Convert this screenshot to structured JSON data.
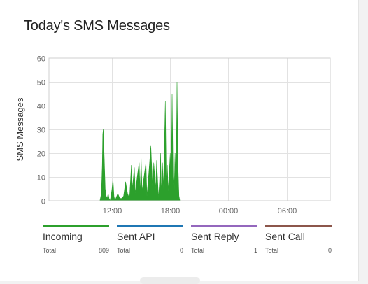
{
  "panel": {
    "title": "Today's SMS Messages"
  },
  "chart_data": {
    "type": "area",
    "title": "Today's SMS Messages",
    "ylabel": "SMS Messages",
    "xlabel": "",
    "ylim": [
      0,
      60
    ],
    "yticks": [
      "0",
      "10",
      "20",
      "30",
      "40",
      "50",
      "60"
    ],
    "xticks": [
      {
        "hour": 12,
        "label": "12:00"
      },
      {
        "hour": 18,
        "label": "18:00"
      },
      {
        "hour": 24,
        "label": "00:00"
      },
      {
        "hour": 30,
        "label": "06:00"
      }
    ],
    "xlim_hours": [
      5.5,
      34.5
    ],
    "grid": true,
    "series": [
      {
        "name": "Incoming",
        "color": "#2ca02c",
        "x_hours": [
          10.75,
          10.9,
          11.0,
          11.05,
          11.1,
          11.2,
          11.3,
          11.4,
          11.5,
          11.6,
          11.7,
          11.8,
          11.9,
          12.0,
          12.1,
          12.2,
          12.3,
          12.4,
          12.6,
          12.8,
          13.0,
          13.2,
          13.4,
          13.6,
          13.8,
          14.0,
          14.1,
          14.3,
          14.4,
          14.6,
          14.8,
          14.9,
          15.0,
          15.1,
          15.3,
          15.5,
          15.6,
          15.8,
          16.0,
          16.2,
          16.3,
          16.5,
          16.6,
          16.8,
          16.9,
          17.0,
          17.1,
          17.2,
          17.3,
          17.5,
          17.6,
          17.7,
          17.8,
          17.9,
          18.0,
          18.1,
          18.2,
          18.3,
          18.4,
          18.5,
          18.6,
          18.7,
          18.8,
          18.9,
          19.0
        ],
        "values": [
          0,
          3,
          15,
          28,
          30,
          18,
          5,
          2,
          1,
          3,
          1,
          0,
          2,
          5,
          9,
          2,
          0,
          1,
          3,
          1,
          1,
          2,
          8,
          3,
          1,
          15,
          5,
          14,
          3,
          10,
          16,
          3,
          18,
          4,
          10,
          16,
          2,
          12,
          23,
          4,
          16,
          5,
          17,
          1,
          8,
          20,
          3,
          16,
          5,
          42,
          8,
          15,
          4,
          12,
          20,
          8,
          45,
          10,
          2,
          20,
          6,
          50,
          15,
          2,
          0
        ],
        "total_label": "Total",
        "total": "809"
      },
      {
        "name": "Sent API",
        "color": "#1f77b4",
        "x_hours": [],
        "values": [],
        "total_label": "Total",
        "total": "0"
      },
      {
        "name": "Sent Reply",
        "color": "#9467bd",
        "x_hours": [],
        "values": [],
        "total_label": "Total",
        "total": "1"
      },
      {
        "name": "Sent Call",
        "color": "#8c564b",
        "x_hours": [],
        "values": [],
        "total_label": "Total",
        "total": "0"
      }
    ]
  }
}
